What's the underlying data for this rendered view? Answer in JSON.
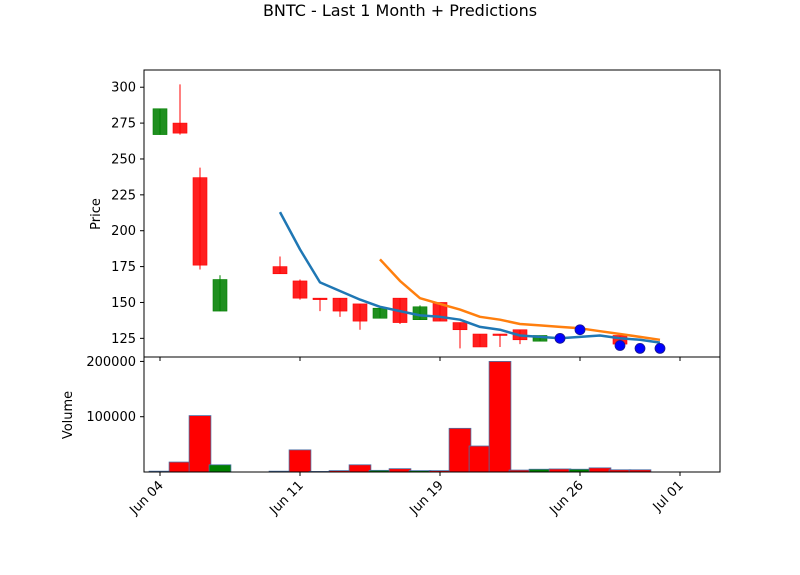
{
  "chart_data": {
    "type": "candlestick",
    "title": "BNTC - Last 1 Month + Predictions",
    "x_tick_labels": [
      "Jun 04",
      "Jun 11",
      "Jun 19",
      "Jun 26",
      "Jul 01"
    ],
    "x_tick_days": [
      3,
      10,
      17,
      24,
      29
    ],
    "price_panel": {
      "ylabel": "Price",
      "ylim": [
        112,
        312
      ],
      "yticks": [
        125,
        150,
        175,
        200,
        225,
        250,
        275,
        300
      ],
      "up_color": "#008000",
      "down_color": "#ff0000",
      "candles": [
        {
          "day": 3,
          "open": 267,
          "high": 285,
          "low": 267,
          "close": 285
        },
        {
          "day": 4,
          "open": 275,
          "high": 302,
          "low": 267,
          "close": 268
        },
        {
          "day": 5,
          "open": 237,
          "high": 244,
          "low": 173,
          "close": 176
        },
        {
          "day": 6,
          "open": 144,
          "high": 169,
          "low": 144,
          "close": 166
        },
        {
          "day": 9,
          "open": 175,
          "high": 182,
          "low": 170,
          "close": 170
        },
        {
          "day": 10,
          "open": 165,
          "high": 166,
          "low": 152,
          "close": 153
        },
        {
          "day": 11,
          "open": 153,
          "high": 153,
          "low": 144,
          "close": 152
        },
        {
          "day": 12,
          "open": 153,
          "high": 153,
          "low": 140,
          "close": 144
        },
        {
          "day": 13,
          "open": 149,
          "high": 149,
          "low": 131,
          "close": 137
        },
        {
          "day": 14,
          "open": 139,
          "high": 146,
          "low": 139,
          "close": 146
        },
        {
          "day": 15,
          "open": 153,
          "high": 153,
          "low": 135,
          "close": 136
        },
        {
          "day": 16,
          "open": 138,
          "high": 148,
          "low": 138,
          "close": 147
        },
        {
          "day": 17,
          "open": 150,
          "high": 150,
          "low": 137,
          "close": 137
        },
        {
          "day": 18,
          "open": 136,
          "high": 136,
          "low": 118,
          "close": 131
        },
        {
          "day": 19,
          "open": 128,
          "high": 128,
          "low": 119,
          "close": 119
        },
        {
          "day": 20,
          "open": 128,
          "high": 128,
          "low": 119,
          "close": 127
        },
        {
          "day": 21,
          "open": 131,
          "high": 131,
          "low": 121,
          "close": 124
        },
        {
          "day": 22,
          "open": 123,
          "high": 127,
          "low": 123,
          "close": 127
        },
        {
          "day": 26,
          "open": 127,
          "high": 127,
          "low": 119,
          "close": 121
        }
      ],
      "series": [
        {
          "color": "#1f77b4",
          "days": [
            9,
            10,
            11,
            12,
            13,
            14,
            15,
            16,
            17,
            18,
            19,
            20,
            21,
            22,
            23,
            24,
            25,
            26,
            27,
            28
          ],
          "values": [
            213,
            187,
            164,
            158,
            152,
            147,
            144,
            141,
            140,
            138,
            133,
            131,
            127,
            126,
            125,
            126,
            127,
            125,
            124,
            122
          ]
        },
        {
          "color": "#ff7f0e",
          "days": [
            14,
            15,
            16,
            17,
            18,
            19,
            20,
            21,
            22,
            23,
            24,
            25,
            26,
            27,
            28
          ],
          "values": [
            180,
            165,
            153,
            149,
            145,
            140,
            138,
            135,
            134,
            133,
            132,
            130,
            128,
            126,
            124
          ]
        }
      ],
      "markers": {
        "color": "#0000ff",
        "days": [
          23,
          24,
          26,
          27,
          28
        ],
        "values": [
          125,
          131,
          120,
          118,
          118
        ]
      }
    },
    "volume_panel": {
      "ylabel": "Volume",
      "ylim": [
        0,
        208000
      ],
      "yticks": [
        100000,
        200000
      ],
      "ytick_labels": [
        "100000",
        "200000"
      ],
      "bars": [
        {
          "day": 3,
          "value": 1500,
          "color": "#008000"
        },
        {
          "day": 4,
          "value": 18000,
          "color": "#ff0000"
        },
        {
          "day": 5,
          "value": 102000,
          "color": "#ff0000"
        },
        {
          "day": 6,
          "value": 13000,
          "color": "#008000"
        },
        {
          "day": 9,
          "value": 1500,
          "color": "#ff0000"
        },
        {
          "day": 10,
          "value": 40000,
          "color": "#ff0000"
        },
        {
          "day": 11,
          "value": 1000,
          "color": "#ff0000"
        },
        {
          "day": 12,
          "value": 2500,
          "color": "#ff0000"
        },
        {
          "day": 13,
          "value": 13000,
          "color": "#ff0000"
        },
        {
          "day": 14,
          "value": 3000,
          "color": "#008000"
        },
        {
          "day": 15,
          "value": 6000,
          "color": "#ff0000"
        },
        {
          "day": 16,
          "value": 2500,
          "color": "#008000"
        },
        {
          "day": 17,
          "value": 2500,
          "color": "#ff0000"
        },
        {
          "day": 18,
          "value": 79000,
          "color": "#ff0000"
        },
        {
          "day": 19,
          "value": 47000,
          "color": "#ff0000"
        },
        {
          "day": 20,
          "value": 200000,
          "color": "#ff0000"
        },
        {
          "day": 21,
          "value": 3500,
          "color": "#ff0000"
        },
        {
          "day": 22,
          "value": 5000,
          "color": "#008000"
        },
        {
          "day": 23,
          "value": 5500,
          "color": "#ff0000"
        },
        {
          "day": 24,
          "value": 5000,
          "color": "#008000"
        },
        {
          "day": 25,
          "value": 7500,
          "color": "#ff0000"
        },
        {
          "day": 26,
          "value": 4000,
          "color": "#ff0000"
        },
        {
          "day": 27,
          "value": 4000,
          "color": "#ff0000"
        }
      ]
    }
  }
}
